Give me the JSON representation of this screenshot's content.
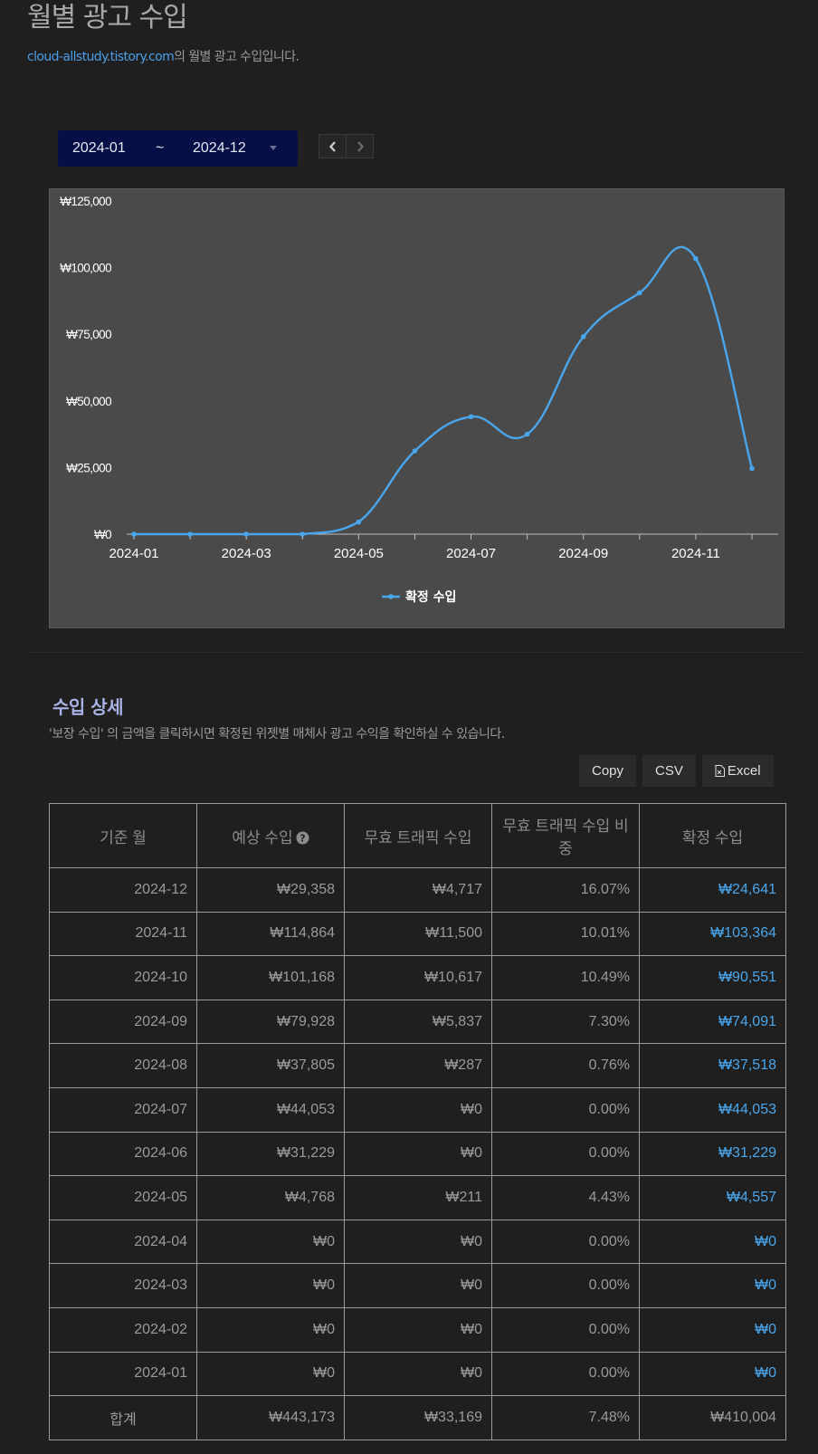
{
  "header": {
    "title": "월별 광고 수입",
    "blog_link": "cloud-allstudy.tistory.com",
    "subtitle_suffix": "의 월별 광고 수입입니다."
  },
  "range": {
    "start": "2024-01",
    "separator": "~",
    "end": "2024-12"
  },
  "nav": {
    "prev_icon": "chevron-left-icon",
    "next_icon": "chevron-right-icon"
  },
  "chart_data": {
    "type": "line",
    "x": [
      "2024-01",
      "2024-02",
      "2024-03",
      "2024-04",
      "2024-05",
      "2024-06",
      "2024-07",
      "2024-08",
      "2024-09",
      "2024-10",
      "2024-11",
      "2024-12"
    ],
    "x_tick_labels": [
      "2024-01",
      "2024-03",
      "2024-05",
      "2024-07",
      "2024-09",
      "2024-11"
    ],
    "y_tick_labels": [
      "₩0",
      "₩25,000",
      "₩50,000",
      "₩75,000",
      "₩100,000",
      "₩125,000"
    ],
    "y_ticks": [
      0,
      25000,
      50000,
      75000,
      100000,
      125000
    ],
    "ylim": [
      0,
      125000
    ],
    "series": [
      {
        "name": "확정 수입",
        "color": "#4aa6ec",
        "values": [
          0,
          0,
          0,
          0,
          4557,
          31229,
          44053,
          37518,
          74091,
          90551,
          103364,
          24641
        ]
      }
    ],
    "legend": "bottom-center",
    "background": "#4a4a4a"
  },
  "details": {
    "title": "수입 상세",
    "description": "'보장 수입' 의 금액을 클릭하시면 확정된 위젯별 매체사 광고 수익을 확인하실 수 있습니다.",
    "buttons": {
      "copy": "Copy",
      "csv": "CSV",
      "excel": "Excel"
    },
    "columns": [
      "기준 월",
      "예상 수입",
      "무효 트래픽 수입",
      "무효 트래픽 수입 비중",
      "확정 수입"
    ],
    "rows": [
      [
        "2024-12",
        "₩29,358",
        "₩4,717",
        "16.07%",
        "₩24,641"
      ],
      [
        "2024-11",
        "₩114,864",
        "₩11,500",
        "10.01%",
        "₩103,364"
      ],
      [
        "2024-10",
        "₩101,168",
        "₩10,617",
        "10.49%",
        "₩90,551"
      ],
      [
        "2024-09",
        "₩79,928",
        "₩5,837",
        "7.30%",
        "₩74,091"
      ],
      [
        "2024-08",
        "₩37,805",
        "₩287",
        "0.76%",
        "₩37,518"
      ],
      [
        "2024-07",
        "₩44,053",
        "₩0",
        "0.00%",
        "₩44,053"
      ],
      [
        "2024-06",
        "₩31,229",
        "₩0",
        "0.00%",
        "₩31,229"
      ],
      [
        "2024-05",
        "₩4,768",
        "₩211",
        "4.43%",
        "₩4,557"
      ],
      [
        "2024-04",
        "₩0",
        "₩0",
        "0.00%",
        "₩0"
      ],
      [
        "2024-03",
        "₩0",
        "₩0",
        "0.00%",
        "₩0"
      ],
      [
        "2024-02",
        "₩0",
        "₩0",
        "0.00%",
        "₩0"
      ],
      [
        "2024-01",
        "₩0",
        "₩0",
        "0.00%",
        "₩0"
      ]
    ],
    "total": [
      "합계",
      "₩443,173",
      "₩33,169",
      "7.48%",
      "₩410,004"
    ]
  }
}
